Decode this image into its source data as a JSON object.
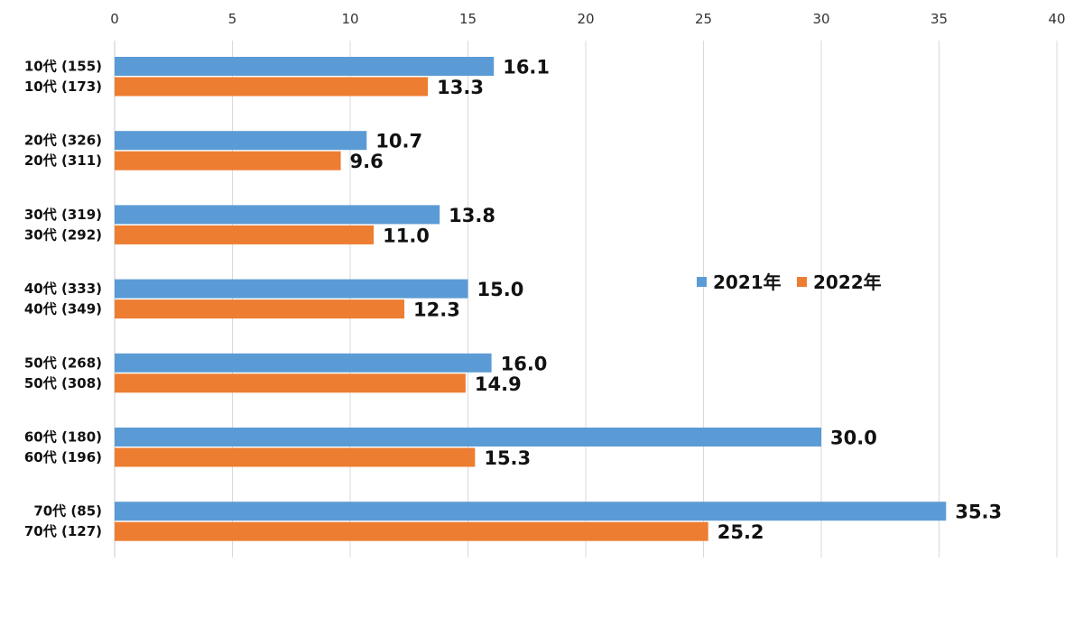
{
  "chart_data": {
    "type": "bar",
    "orientation": "horizontal",
    "title": "",
    "xlabel": "",
    "ylabel": "",
    "xlim": [
      0,
      40
    ],
    "x_ticks": [
      "0",
      "5",
      "10",
      "15",
      "20",
      "25",
      "30",
      "35",
      "40"
    ],
    "x_axis_position": "top",
    "grid": true,
    "legend_position": "right-middle",
    "groups": [
      {
        "rows": [
          {
            "label": "10代 (155)",
            "series": 0,
            "value": 16.1,
            "value_label": "16.1"
          },
          {
            "label": "10代 (173)",
            "series": 1,
            "value": 13.3,
            "value_label": "13.3"
          }
        ]
      },
      {
        "rows": [
          {
            "label": "20代 (326)",
            "series": 0,
            "value": 10.7,
            "value_label": "10.7"
          },
          {
            "label": "20代 (311)",
            "series": 1,
            "value": 9.6,
            "value_label": "9.6"
          }
        ]
      },
      {
        "rows": [
          {
            "label": "30代 (319)",
            "series": 0,
            "value": 13.8,
            "value_label": "13.8"
          },
          {
            "label": "30代 (292)",
            "series": 1,
            "value": 11.0,
            "value_label": "11.0"
          }
        ]
      },
      {
        "rows": [
          {
            "label": "40代 (333)",
            "series": 0,
            "value": 15.0,
            "value_label": "15.0"
          },
          {
            "label": "40代 (349)",
            "series": 1,
            "value": 12.3,
            "value_label": "12.3"
          }
        ]
      },
      {
        "rows": [
          {
            "label": "50代 (268)",
            "series": 0,
            "value": 16.0,
            "value_label": "16.0"
          },
          {
            "label": "50代 (308)",
            "series": 1,
            "value": 14.9,
            "value_label": "14.9"
          }
        ]
      },
      {
        "rows": [
          {
            "label": "60代 (180)",
            "series": 0,
            "value": 30.0,
            "value_label": "30.0"
          },
          {
            "label": "60代 (196)",
            "series": 1,
            "value": 15.3,
            "value_label": "15.3"
          }
        ]
      },
      {
        "rows": [
          {
            "label": "70代 (85)",
            "series": 0,
            "value": 35.3,
            "value_label": "35.3"
          },
          {
            "label": "70代 (127)",
            "series": 1,
            "value": 25.2,
            "value_label": "25.2"
          }
        ]
      }
    ],
    "series": [
      {
        "name": "2021年",
        "color": "#5b9bd5",
        "values": [
          16.1,
          10.7,
          13.8,
          15.0,
          16.0,
          30.0,
          35.3
        ]
      },
      {
        "name": "2022年",
        "color": "#ed7d31",
        "values": [
          13.3,
          9.6,
          11.0,
          12.3,
          14.9,
          15.3,
          25.2
        ]
      }
    ]
  }
}
